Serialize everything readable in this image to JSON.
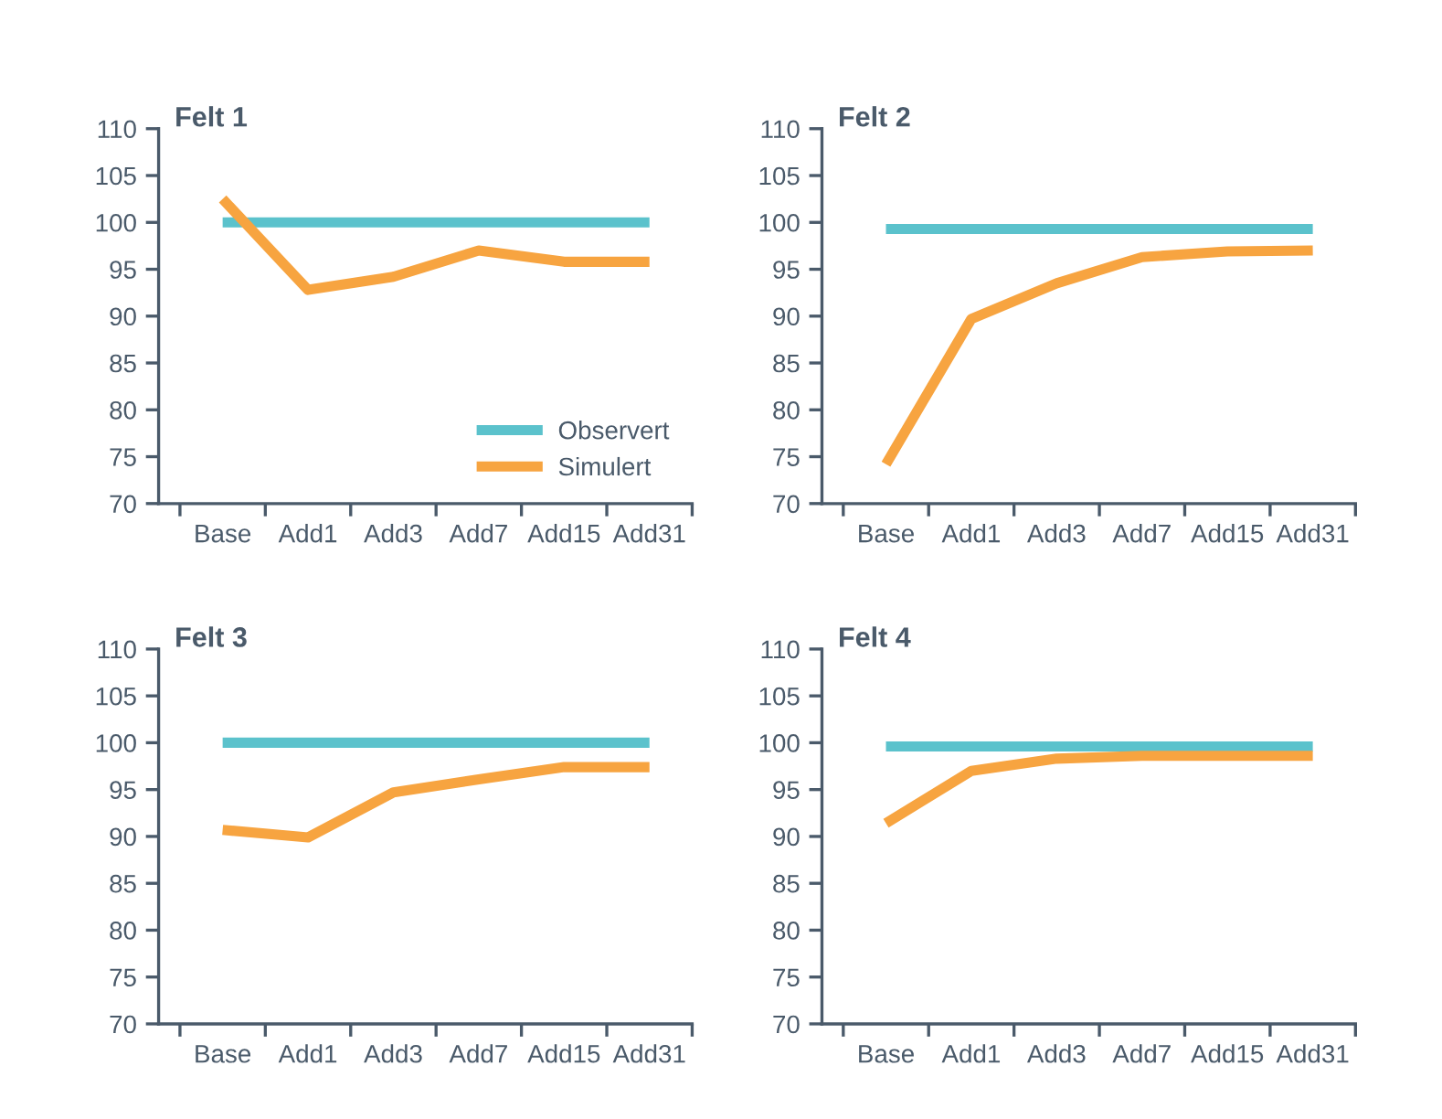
{
  "chart_data": [
    {
      "type": "line",
      "title": "Felt 1",
      "categories": [
        "Base",
        "Add1",
        "Add3",
        "Add7",
        "Add15",
        "Add31"
      ],
      "ylim": [
        70,
        110
      ],
      "yticks": [
        70,
        75,
        80,
        85,
        90,
        95,
        100,
        105,
        110
      ],
      "grid": false,
      "legend": "bottom right",
      "series": [
        {
          "name": "Observert",
          "color": "#5bc2cc",
          "values": [
            100,
            100,
            100,
            100,
            100,
            100
          ]
        },
        {
          "name": "Simulert",
          "color": "#f7a440",
          "values": [
            102.5,
            92.8,
            94.2,
            97,
            95.8,
            95.8
          ]
        }
      ]
    },
    {
      "type": "line",
      "title": "Felt 2",
      "categories": [
        "Base",
        "Add1",
        "Add3",
        "Add7",
        "Add15",
        "Add31"
      ],
      "ylim": [
        70,
        110
      ],
      "yticks": [
        70,
        75,
        80,
        85,
        90,
        95,
        100,
        105,
        110
      ],
      "grid": false,
      "series": [
        {
          "color": "#5bc2cc",
          "values": [
            99.3,
            99.3,
            99.3,
            99.3,
            99.3,
            99.3
          ]
        },
        {
          "color": "#f7a440",
          "values": [
            74.2,
            89.7,
            93.5,
            96.3,
            96.9,
            97
          ]
        }
      ]
    },
    {
      "type": "line",
      "title": "Felt 3",
      "categories": [
        "Base",
        "Add1",
        "Add3",
        "Add7",
        "Add15",
        "Add31"
      ],
      "ylim": [
        70,
        110
      ],
      "yticks": [
        70,
        75,
        80,
        85,
        90,
        95,
        100,
        105,
        110
      ],
      "grid": false,
      "series": [
        {
          "color": "#5bc2cc",
          "values": [
            100,
            100,
            100,
            100,
            100,
            100
          ]
        },
        {
          "color": "#f7a440",
          "values": [
            90.7,
            89.9,
            94.7,
            96.1,
            97.4,
            97.4
          ]
        }
      ]
    },
    {
      "type": "line",
      "title": "Felt 4",
      "categories": [
        "Base",
        "Add1",
        "Add3",
        "Add7",
        "Add15",
        "Add31"
      ],
      "ylim": [
        70,
        110
      ],
      "yticks": [
        70,
        75,
        80,
        85,
        90,
        95,
        100,
        105,
        110
      ],
      "grid": false,
      "series": [
        {
          "color": "#5bc2cc",
          "values": [
            99.6,
            99.6,
            99.6,
            99.6,
            99.6,
            99.6
          ]
        },
        {
          "color": "#f7a440",
          "values": [
            91.4,
            97,
            98.3,
            98.6,
            98.6,
            98.6
          ]
        }
      ]
    }
  ]
}
